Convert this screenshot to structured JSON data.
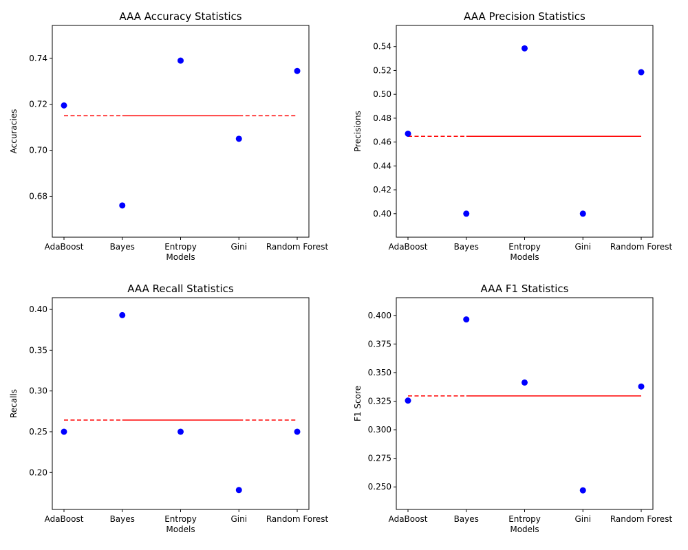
{
  "chart_data": [
    {
      "type": "scatter",
      "title": "AAA Accuracy Statistics",
      "xlabel": "Models",
      "ylabel": "Accuracies",
      "categories": [
        "AdaBoost",
        "Bayes",
        "Entropy",
        "Gini",
        "Random Forest"
      ],
      "values": [
        0.7195,
        0.676,
        0.739,
        0.705,
        0.7345
      ],
      "mean": 0.715,
      "ylim": [
        0.6622,
        0.7543
      ],
      "yticks": [
        0.68,
        0.7,
        0.72,
        0.74
      ],
      "ytick_labels": [
        "0.68",
        "0.70",
        "0.72",
        "0.74"
      ],
      "mean_line_style": "dashed-then-solid-then-dashed",
      "grid": false
    },
    {
      "type": "scatter",
      "title": "AAA Precision Statistics",
      "xlabel": "Models",
      "ylabel": "Precisions",
      "categories": [
        "AdaBoost",
        "Bayes",
        "Entropy",
        "Gini",
        "Random Forest"
      ],
      "values": [
        0.467,
        0.4,
        0.5385,
        0.4,
        0.5185
      ],
      "mean": 0.4648,
      "ylim": [
        0.3803,
        0.5577
      ],
      "yticks": [
        0.4,
        0.42,
        0.44,
        0.46,
        0.48,
        0.5,
        0.52,
        0.54
      ],
      "ytick_labels": [
        "0.40",
        "0.42",
        "0.44",
        "0.46",
        "0.48",
        "0.50",
        "0.52",
        "0.54"
      ],
      "mean_line_style": "dashed-then-solid",
      "grid": false
    },
    {
      "type": "scatter",
      "title": "AAA Recall Statistics",
      "xlabel": "Models",
      "ylabel": "Recalls",
      "categories": [
        "AdaBoost",
        "Bayes",
        "Entropy",
        "Gini",
        "Random Forest"
      ],
      "values": [
        0.25,
        0.393,
        0.25,
        0.1785,
        0.25
      ],
      "mean": 0.2643,
      "ylim": [
        0.1547,
        0.4144
      ],
      "yticks": [
        0.2,
        0.25,
        0.3,
        0.35,
        0.4
      ],
      "ytick_labels": [
        "0.20",
        "0.25",
        "0.30",
        "0.35",
        "0.40"
      ],
      "mean_line_style": "dashed-then-solid-then-dashed",
      "grid": false
    },
    {
      "type": "scatter",
      "title": "AAA F1 Statistics",
      "xlabel": "Models",
      "ylabel": "F1 Score",
      "categories": [
        "AdaBoost",
        "Bayes",
        "Entropy",
        "Gini",
        "Random Forest"
      ],
      "values": [
        0.3255,
        0.3965,
        0.3413,
        0.247,
        0.3378
      ],
      "mean": 0.3296,
      "ylim": [
        0.2303,
        0.4155
      ],
      "yticks": [
        0.25,
        0.275,
        0.3,
        0.325,
        0.35,
        0.375,
        0.4
      ],
      "ytick_labels": [
        "0.250",
        "0.275",
        "0.300",
        "0.325",
        "0.350",
        "0.375",
        "0.400"
      ],
      "mean_line_style": "dashed-then-solid",
      "grid": false
    }
  ],
  "colors": {
    "points": "#0000ff",
    "mean_line": "#ff0000"
  }
}
